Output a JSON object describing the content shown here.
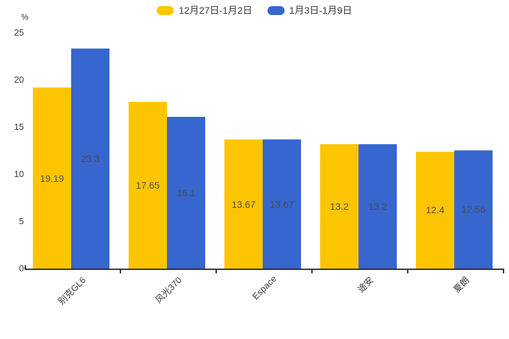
{
  "chart_data": {
    "type": "bar",
    "title": "",
    "unit_label": "%",
    "categories": [
      "别克GL6",
      "风光370",
      "Espace",
      "途安",
      "夏朗"
    ],
    "series": [
      {
        "name": "12月27日-1月2日",
        "color": "#FDC500",
        "values": [
          19.19,
          17.65,
          13.67,
          13.2,
          12.4
        ]
      },
      {
        "name": "1月3日-1月9日",
        "color": "#3666CE",
        "values": [
          23.3,
          16.1,
          13.67,
          13.2,
          12.56
        ]
      }
    ],
    "yticks": [
      0,
      5,
      10,
      15,
      20,
      25
    ],
    "ylim": [
      0,
      25
    ],
    "legend_position": "top",
    "grid": false,
    "value_labels": "centered-inside-bars",
    "colors": {
      "axis": "#2e2e2e",
      "text": "#333333",
      "value_label": "#4d4d4d"
    }
  }
}
